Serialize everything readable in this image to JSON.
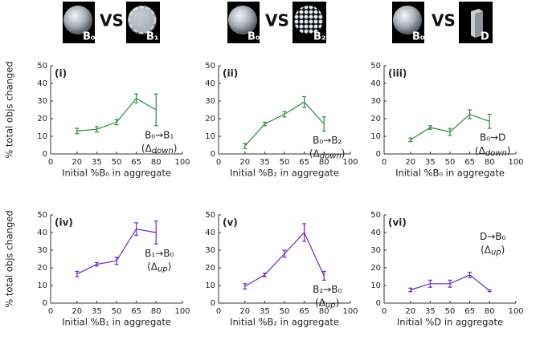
{
  "header": [
    {
      "left": "B₀",
      "vs": "VS",
      "right": "B₁"
    },
    {
      "left": "B₀",
      "vs": "VS",
      "right": "B₂"
    },
    {
      "left": "B₀",
      "vs": "VS",
      "right": "D"
    }
  ],
  "chart_data": [
    {
      "type": "line",
      "panel": "(i)",
      "ylabel": "% total objs changed",
      "xlabel": "Initial %B₀ in aggregate",
      "x": [
        20,
        35,
        50,
        65,
        80
      ],
      "values": [
        13,
        14,
        18,
        31.5,
        25
      ],
      "errors": [
        1.5,
        1.5,
        1.5,
        2.5,
        9
      ],
      "color": "#2e8b3e",
      "xlim": [
        0,
        100
      ],
      "xticks": [
        0,
        20,
        35,
        50,
        65,
        80,
        100
      ],
      "ylim": [
        0,
        50
      ],
      "yticks": [
        0,
        10,
        20,
        30,
        40,
        50
      ],
      "annotation": [
        "B₀→B₁",
        "(Δ",
        "down",
        ")"
      ]
    },
    {
      "type": "line",
      "panel": "(ii)",
      "xlabel": "Initial %B₂ in aggregate",
      "x": [
        20,
        35,
        50,
        65,
        80
      ],
      "values": [
        4.5,
        17,
        22.5,
        29.5,
        17
      ],
      "errors": [
        1.5,
        1,
        1.5,
        3,
        4
      ],
      "color": "#2e8b3e",
      "xlim": [
        0,
        100
      ],
      "xticks": [
        0,
        20,
        35,
        50,
        65,
        80,
        100
      ],
      "ylim": [
        0,
        50
      ],
      "yticks": [
        0,
        10,
        20,
        30,
        40,
        50
      ],
      "annotation": [
        "B₀→B₂",
        "(Δ",
        "down",
        ")"
      ]
    },
    {
      "type": "line",
      "panel": "(iii)",
      "xlabel": "Initial %B₀ in aggregate",
      "x": [
        20,
        35,
        50,
        65,
        80
      ],
      "values": [
        8,
        15,
        12.5,
        22.5,
        18.5
      ],
      "errors": [
        1,
        1,
        2,
        2.5,
        4
      ],
      "color": "#2e8b3e",
      "xlim": [
        0,
        100
      ],
      "xticks": [
        0,
        20,
        35,
        50,
        65,
        80,
        100
      ],
      "ylim": [
        0,
        50
      ],
      "yticks": [
        0,
        10,
        20,
        30,
        40,
        50
      ],
      "annotation": [
        "B₀→D",
        "(Δ",
        "down",
        ")"
      ]
    },
    {
      "type": "line",
      "panel": "(iv)",
      "ylabel": "% total objs changed",
      "xlabel": "Initial %B₁ in aggregate",
      "x": [
        20,
        35,
        50,
        65,
        80
      ],
      "values": [
        16.5,
        22,
        24,
        42,
        40
      ],
      "errors": [
        1.5,
        1,
        2,
        3.5,
        6.5
      ],
      "color": "#6a2cc0",
      "xlim": [
        0,
        100
      ],
      "xticks": [
        0,
        20,
        35,
        50,
        65,
        80,
        100
      ],
      "ylim": [
        0,
        50
      ],
      "yticks": [
        0,
        10,
        20,
        30,
        40,
        50
      ],
      "annotation": [
        "B₁→B₀",
        "(Δ",
        "up",
        ")"
      ]
    },
    {
      "type": "line",
      "panel": "(v)",
      "xlabel": "Initial %B₂ in aggregate",
      "x": [
        20,
        35,
        50,
        65,
        80
      ],
      "values": [
        9.5,
        16,
        28,
        40,
        15.5
      ],
      "errors": [
        1.5,
        1,
        2,
        5,
        2.5
      ],
      "color": "#6a2cc0",
      "xlim": [
        0,
        100
      ],
      "xticks": [
        0,
        20,
        35,
        50,
        65,
        80,
        100
      ],
      "ylim": [
        0,
        50
      ],
      "yticks": [
        0,
        10,
        20,
        30,
        40,
        50
      ],
      "annotation": [
        "B₂→B₀",
        "(Δ",
        "up",
        ")"
      ]
    },
    {
      "type": "line",
      "panel": "(vi)",
      "xlabel": "Initial %D in aggregate",
      "x": [
        20,
        35,
        50,
        65,
        80
      ],
      "values": [
        7.5,
        11,
        11,
        16,
        7
      ],
      "errors": [
        1,
        2,
        2,
        1.5,
        0.5
      ],
      "color": "#6a2cc0",
      "xlim": [
        0,
        100
      ],
      "xticks": [
        0,
        20,
        35,
        50,
        65,
        80,
        100
      ],
      "ylim": [
        0,
        50
      ],
      "yticks": [
        0,
        10,
        20,
        30,
        40,
        50
      ],
      "annotation": [
        "D→B₀",
        "(Δ",
        "up",
        ")"
      ]
    }
  ]
}
